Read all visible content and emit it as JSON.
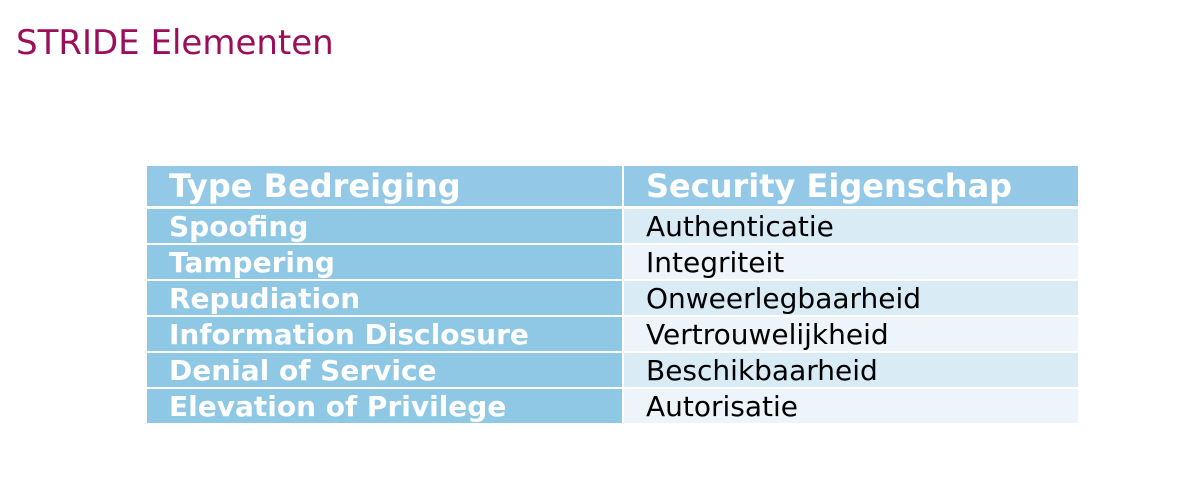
{
  "slide": {
    "title": "STRIDE Elementen"
  },
  "table": {
    "headers": [
      "Type Bedreiging",
      "Security Eigenschap"
    ],
    "rows": [
      {
        "threat": "Spoofing",
        "property": "Authenticatie"
      },
      {
        "threat": "Tampering",
        "property": "Integriteit"
      },
      {
        "threat": "Repudiation",
        "property": "Onweerlegbaarheid"
      },
      {
        "threat": "Information Disclosure",
        "property": "Vertrouwelijkheid"
      },
      {
        "threat": "Denial of Service",
        "property": "Beschikbaarheid"
      },
      {
        "threat": "Elevation of Privilege",
        "property": "Autorisatie"
      }
    ]
  },
  "colors": {
    "title": "#9b0f5a",
    "header_bg": "#93c9e6",
    "threat_cell_bg": "#8fc8e5",
    "property_cell_bg_odd": "#d9ebf5",
    "property_cell_bg_even": "#edf5fa"
  }
}
